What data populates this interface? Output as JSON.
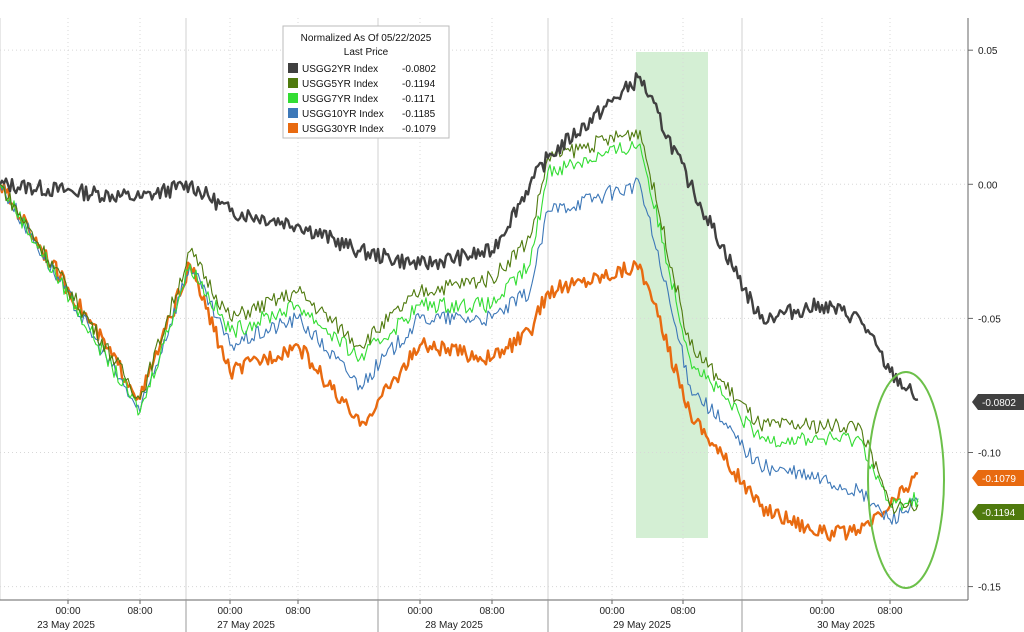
{
  "chart_data": {
    "type": "line",
    "legend": {
      "title": "Normalized As Of 05/22/2025",
      "subtitle": "Last Price",
      "placement": "top-left"
    },
    "y_axis": {
      "position": "right",
      "ylim": [
        -0.155,
        0.062
      ],
      "ticks": [
        0.05,
        0.0,
        -0.05,
        -0.1,
        -0.15
      ],
      "tick_labels": [
        "0.05",
        "0.00",
        "-0.05",
        "-0.10",
        "-0.15"
      ]
    },
    "x_axis": {
      "time_labels": [
        "00:00",
        "08:00",
        "00:00",
        "08:00",
        "00:00",
        "08:00",
        "00:00",
        "08:00",
        "00:00",
        "08:00"
      ],
      "date_labels": [
        "23 May 2025",
        "27 May 2025",
        "28 May 2025",
        "29 May 2025",
        "30 May 2025"
      ]
    },
    "grid": true,
    "highlight_band": {
      "start": "29 May 2025 02:00",
      "end": "29 May 2025 11:00",
      "color": "#cdeccd"
    },
    "annotation": {
      "type": "ellipse",
      "around": "30 May 2025 05:00-12:00",
      "color": "#6cc04a"
    },
    "x": [
      "23 May 00:00",
      "23 May 08:00",
      "23 May 16:00",
      "27 May 00:00",
      "27 May 08:00",
      "27 May 16:00",
      "28 May 00:00",
      "28 May 08:00",
      "28 May 16:00",
      "29 May 00:00",
      "29 May 04:00",
      "29 May 08:00",
      "29 May 16:00",
      "30 May 00:00",
      "30 May 04:00",
      "30 May 08:00",
      "30 May 10:00"
    ],
    "series": [
      {
        "name": "USGG2YR Index",
        "last": "-0.0802",
        "color": "#404040",
        "values": [
          0.0,
          -0.005,
          0.0,
          -0.01,
          -0.015,
          -0.025,
          -0.03,
          -0.025,
          0.0,
          0.01,
          0.04,
          0.0,
          -0.05,
          -0.045,
          -0.05,
          -0.07,
          -0.0802
        ]
      },
      {
        "name": "USGG5YR Index",
        "last": "-0.1194",
        "color": "#4f7a0e",
        "values": [
          0.0,
          -0.08,
          -0.025,
          -0.05,
          -0.04,
          -0.06,
          -0.04,
          -0.035,
          -0.02,
          0.01,
          0.02,
          -0.06,
          -0.09,
          -0.09,
          -0.09,
          -0.12,
          -0.1194
        ]
      },
      {
        "name": "USGG7YR Index",
        "last": "-0.1171",
        "color": "#33dd33",
        "values": [
          0.0,
          -0.085,
          -0.03,
          -0.055,
          -0.045,
          -0.065,
          -0.045,
          -0.045,
          -0.03,
          0.005,
          0.015,
          -0.065,
          -0.095,
          -0.095,
          -0.095,
          -0.12,
          -0.1171
        ]
      },
      {
        "name": "USGG10YR Index",
        "last": "-0.1185",
        "color": "#3d78b8",
        "values": [
          0.0,
          -0.085,
          -0.03,
          -0.06,
          -0.05,
          -0.075,
          -0.05,
          -0.05,
          -0.04,
          -0.01,
          0.0,
          -0.075,
          -0.105,
          -0.11,
          -0.115,
          -0.125,
          -0.1185
        ]
      },
      {
        "name": "USGG30YR Index",
        "last": "-0.1079",
        "color": "#e86a10",
        "values": [
          0.0,
          -0.08,
          -0.03,
          -0.07,
          -0.06,
          -0.09,
          -0.06,
          -0.065,
          -0.055,
          -0.04,
          -0.03,
          -0.085,
          -0.12,
          -0.13,
          -0.13,
          -0.12,
          -0.1079
        ]
      }
    ],
    "last_value_badges": [
      {
        "label": "-0.0802",
        "bg": "#404040",
        "fg": "#ffffff"
      },
      {
        "label": "-0.1079",
        "bg": "#e86a10",
        "fg": "#ffffff"
      },
      {
        "label": "-0.1194",
        "bg": "#4f7a0e",
        "fg": "#ffffff"
      }
    ]
  }
}
